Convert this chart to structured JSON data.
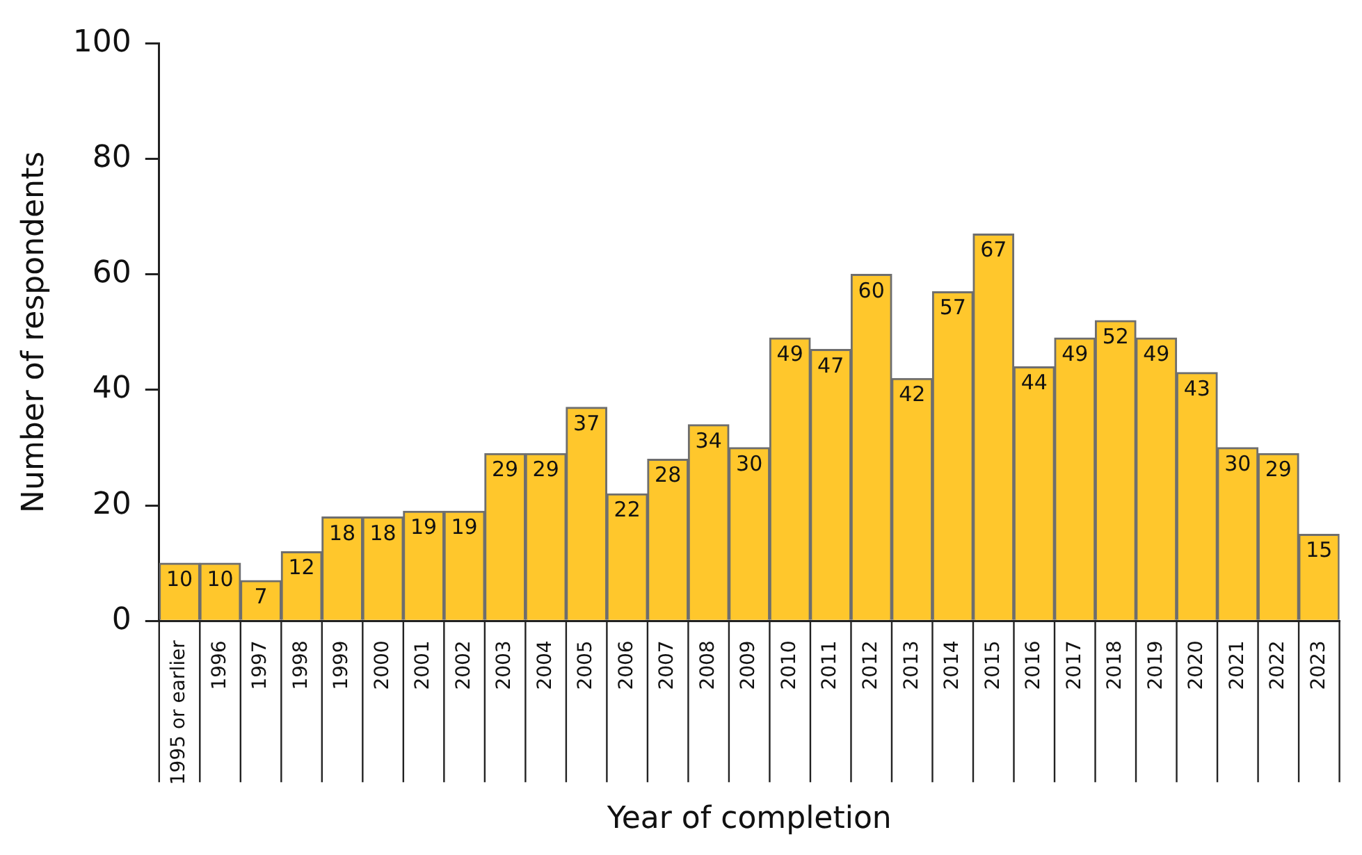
{
  "chart_data": {
    "type": "bar",
    "xlabel": "Year of completion",
    "ylabel": "Number of respondents",
    "categories": [
      "1995 or earlier",
      "1996",
      "1997",
      "1998",
      "1999",
      "2000",
      "2001",
      "2002",
      "2003",
      "2004",
      "2005",
      "2006",
      "2007",
      "2008",
      "2009",
      "2010",
      "2011",
      "2012",
      "2013",
      "2014",
      "2015",
      "2016",
      "2017",
      "2018",
      "2019",
      "2020",
      "2021",
      "2022",
      "2023"
    ],
    "values": [
      10,
      10,
      7,
      12,
      18,
      18,
      19,
      19,
      29,
      29,
      37,
      22,
      28,
      34,
      30,
      49,
      47,
      60,
      42,
      57,
      67,
      44,
      49,
      52,
      49,
      43,
      30,
      29,
      15
    ],
    "color": "#ffc72c",
    "ylim": [
      0,
      100
    ],
    "yticks": [
      0,
      20,
      40,
      60,
      80,
      100
    ],
    "data_labels": true
  }
}
